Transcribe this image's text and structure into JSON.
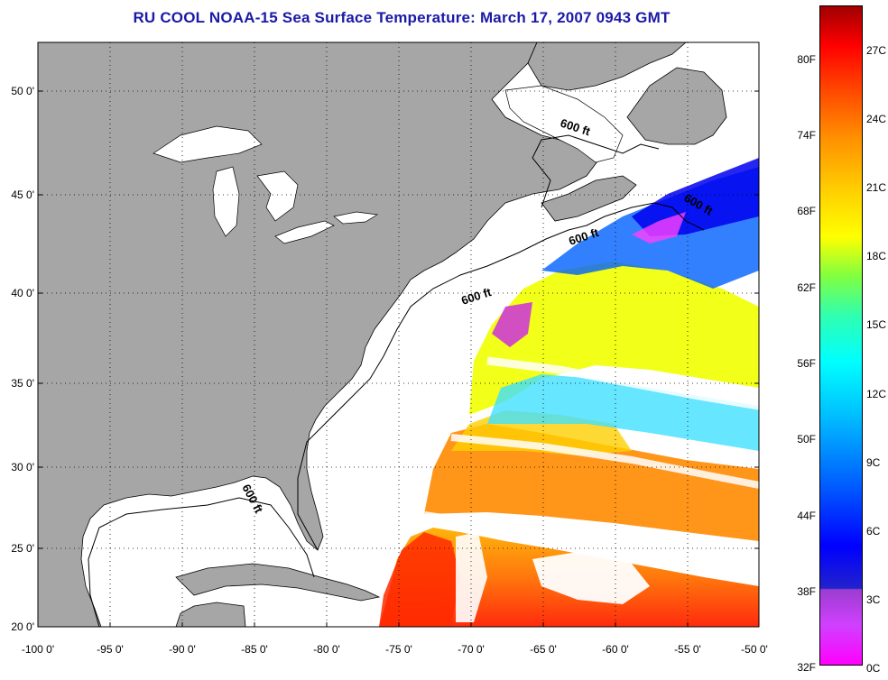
{
  "title": "RU COOL  NOAA-15  Sea Surface Temperature:  March 17, 2007 0943 GMT",
  "map": {
    "lon_ticks": [
      "-100 0'",
      "-95 0'",
      "-90 0'",
      "-85 0'",
      "-80 0'",
      "-75 0'",
      "-70 0'",
      "-65 0'",
      "-60 0'",
      "-55 0'",
      "-50 0'"
    ],
    "lat_ticks": [
      "50 0'",
      "45 0'",
      "40 0'",
      "35 0'",
      "30 0'",
      "25 0'",
      "20 0'"
    ],
    "lon_range": [
      -100,
      -50
    ],
    "lat_range": [
      20,
      52.5
    ],
    "depth_label": "600 ft",
    "land_color": "#a6a6a6",
    "ocean_color": "#ffffff"
  },
  "colorbar": {
    "fahrenheit": [
      "80F",
      "74F",
      "68F",
      "62F",
      "56F",
      "50F",
      "44F",
      "38F",
      "32F"
    ],
    "celsius": [
      "27C",
      "24C",
      "21C",
      "18C",
      "15C",
      "12C",
      "9C",
      "6C",
      "3C",
      "0C"
    ]
  }
}
